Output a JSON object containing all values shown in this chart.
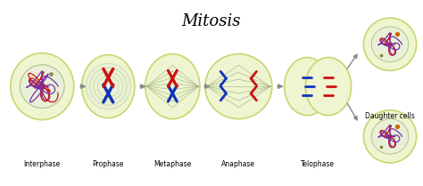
{
  "title": "Mitosis",
  "title_fontsize": 13,
  "background_color": "#ffffff",
  "cell_fill": "#eef5d0",
  "cell_edge": "#c5d870",
  "stages": [
    "Interphase",
    "Prophase",
    "Metaphase",
    "Anaphase",
    "Telophase",
    "Daughter cells"
  ],
  "arrow_color": "#888888",
  "spindle_color": "#9aaa7a",
  "chr_blue": "#1133bb",
  "chr_red": "#cc1111",
  "chr_purple": "#7733aa",
  "nucleus_color": "#ddeebb",
  "nucleus_edge": "#aabb88",
  "label_fontsize": 5.5
}
